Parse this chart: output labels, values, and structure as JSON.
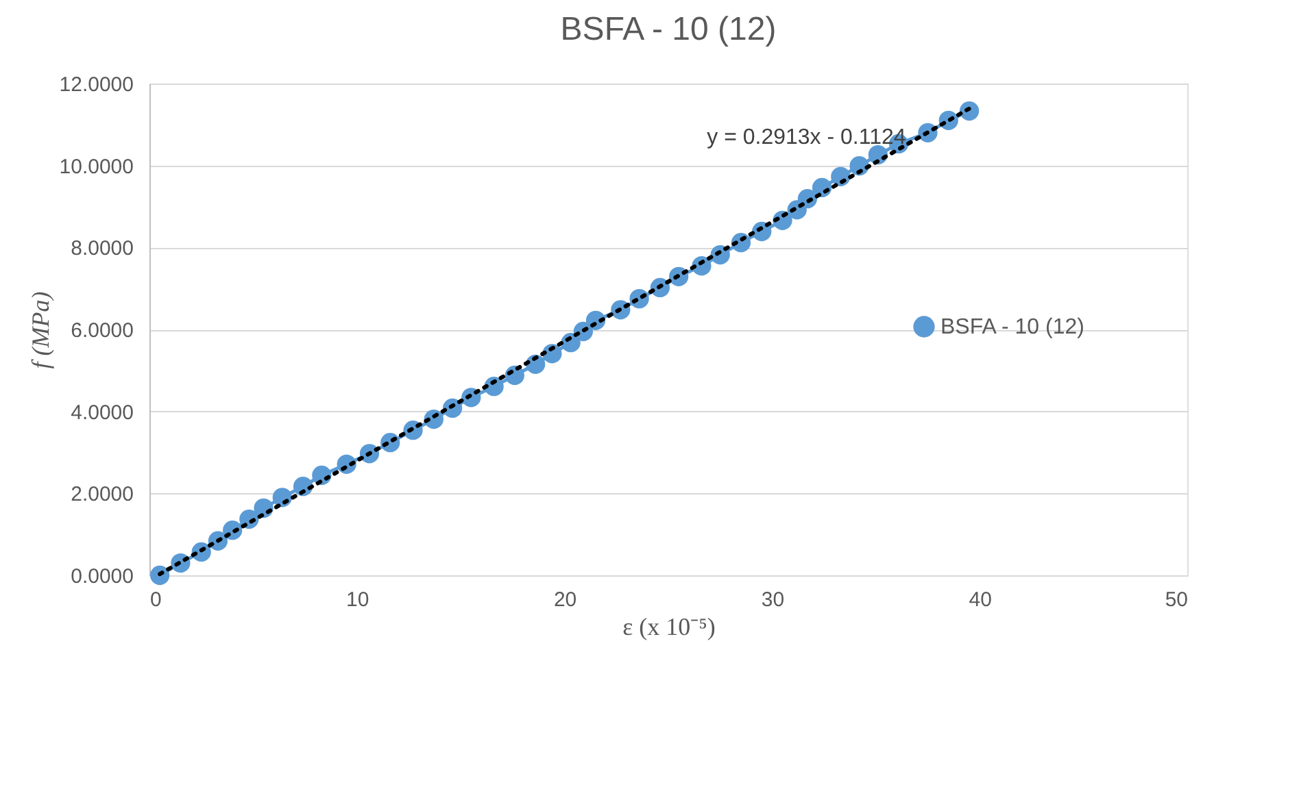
{
  "chart_data": {
    "type": "line",
    "title": "BSFA - 10 (12)",
    "xlabel": "ε (x 10⁻⁵)",
    "ylabel": "f (MPa)",
    "xlim": [
      0,
      50
    ],
    "xticks": [
      0,
      10,
      20,
      30,
      40,
      50
    ],
    "ylim": [
      0,
      12
    ],
    "yticks": [
      {
        "value": 0,
        "label": "0.0000"
      },
      {
        "value": 2,
        "label": "2.0000"
      },
      {
        "value": 4,
        "label": "4.0000"
      },
      {
        "value": 6,
        "label": "6.0000"
      },
      {
        "value": 8,
        "label": "8.0000"
      },
      {
        "value": 10,
        "label": "10.0000"
      },
      {
        "value": 12,
        "label": "12.0000"
      }
    ],
    "grid": "y",
    "legend": "right",
    "marker": "circle",
    "annotations": [
      "y = 0.2913x - 0.1124"
    ],
    "series": [
      {
        "name": "BSFA - 10 (12)",
        "color": "#5b9bd5",
        "x": [
          0.5,
          1.5,
          2.5,
          3.3,
          4.0,
          4.8,
          5.5,
          6.4,
          7.4,
          8.3,
          9.5,
          10.6,
          11.6,
          12.7,
          13.7,
          14.6,
          15.5,
          16.6,
          17.6,
          18.6,
          19.4,
          20.3,
          20.9,
          21.5,
          22.7,
          23.6,
          24.6,
          25.5,
          26.6,
          27.5,
          28.5,
          29.5,
          30.5,
          31.2,
          31.7,
          32.4,
          33.3,
          34.2,
          35.1,
          36.1,
          37.5,
          38.5,
          39.5
        ],
        "values": [
          0.0,
          0.3,
          0.57,
          0.84,
          1.1,
          1.37,
          1.64,
          1.9,
          2.17,
          2.44,
          2.71,
          2.97,
          3.24,
          3.54,
          3.81,
          4.08,
          4.34,
          4.61,
          4.88,
          5.15,
          5.41,
          5.68,
          5.95,
          6.22,
          6.48,
          6.75,
          7.02,
          7.29,
          7.55,
          7.82,
          8.12,
          8.39,
          8.66,
          8.92,
          9.19,
          9.46,
          9.73,
          9.99,
          10.26,
          10.53,
          10.8,
          11.1,
          11.33
        ]
      },
      {
        "type": "line",
        "color": "#000000",
        "marker": "none",
        "line_style": "dotted",
        "x": [
          0.5,
          39.5
        ],
        "values": [
          0.03,
          11.39
        ]
      }
    ]
  }
}
